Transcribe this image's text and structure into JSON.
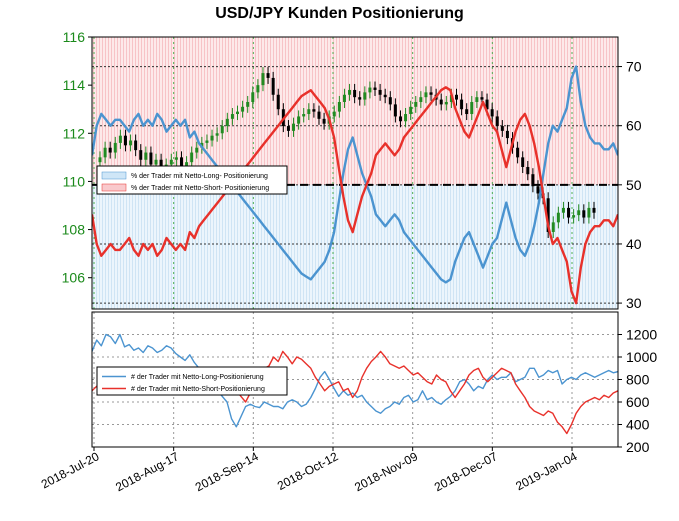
{
  "title": "USD/JPY Kunden Positionierung",
  "colors": {
    "long": "#4b94d0",
    "short": "#e8312b",
    "long_fill": "#cfe6f7",
    "short_fill": "#f9c9cc",
    "tick_green": "#1b8a1b",
    "candle_up": "#228b22",
    "candle_down": "#000000"
  },
  "chart_data": [
    {
      "type": "line",
      "panel": "top",
      "title": "USD/JPY Kunden Positionierung",
      "x_ticks": [
        "2018-Jul-20",
        "2018-Aug-17",
        "2018-Sep-14",
        "2018-Oct-12",
        "2018-Nov-09",
        "2018-Dec-07",
        "2019-Jan-04"
      ],
      "y_left": {
        "ylim": [
          104.7,
          116
        ],
        "ticks": [
          "106",
          "108",
          "110",
          "112",
          "114",
          "116"
        ]
      },
      "y_right": {
        "ylim": [
          29,
          75
        ],
        "ticks": [
          "30",
          "40",
          "50",
          "60",
          "70"
        ]
      },
      "threshold": 50,
      "legend": {
        "position": "upper-left",
        "entries": [
          "% der Trader mit Netto-Long- Positionierung",
          "% der Trader mit Netto-Short- Positionierung"
        ]
      },
      "series": [
        {
          "name": "% der Trader mit Netto-Long- Positionierung",
          "values": [
            55,
            60,
            62,
            61,
            60,
            61,
            61,
            60,
            59,
            61,
            62,
            60,
            61,
            60,
            62,
            61,
            59,
            60,
            61,
            60,
            61,
            58,
            59,
            57,
            56,
            55,
            54,
            53,
            52,
            51,
            50,
            49,
            48,
            47,
            46,
            45,
            44,
            43,
            42,
            41,
            40,
            39,
            38,
            37,
            36,
            35,
            34.5,
            34,
            35,
            36,
            37,
            39,
            42,
            47,
            52,
            56,
            58,
            55,
            52,
            50,
            48,
            45,
            44,
            43,
            44,
            45,
            44,
            42,
            41,
            40,
            39,
            38,
            37,
            36,
            35,
            34,
            33.5,
            34,
            37,
            39,
            41,
            42,
            40,
            38,
            36,
            38,
            40,
            41,
            44,
            47,
            44,
            41,
            39,
            38,
            40,
            43,
            47,
            52,
            57,
            60,
            59,
            61,
            63,
            68,
            70,
            64,
            60,
            58,
            57,
            57,
            56,
            56,
            57,
            55
          ]
        },
        {
          "name": "% der Trader mit Netto-Short- Positionierung",
          "values": [
            45,
            40,
            38,
            39,
            40,
            39,
            39,
            40,
            41,
            39,
            38,
            40,
            39,
            40,
            38,
            39,
            41,
            40,
            39,
            40,
            39,
            42,
            41,
            43,
            44,
            45,
            46,
            47,
            48,
            49,
            50,
            51,
            52,
            53,
            54,
            55,
            56,
            57,
            58,
            59,
            60,
            61,
            62,
            63,
            64,
            65,
            65.5,
            66,
            65,
            64,
            63,
            61,
            58,
            53,
            48,
            44,
            42,
            45,
            48,
            50,
            52,
            55,
            56,
            57,
            56,
            55,
            56,
            58,
            59,
            60,
            61,
            62,
            63,
            64,
            65,
            66,
            66.5,
            66,
            63,
            61,
            59,
            58,
            60,
            62,
            64,
            62,
            60,
            59,
            56,
            53,
            56,
            59,
            61,
            62,
            60,
            57,
            53,
            48,
            43,
            40,
            41,
            39,
            37,
            32,
            30,
            36,
            40,
            42,
            43,
            43,
            44,
            44,
            43,
            45
          ]
        }
      ],
      "candles_approx_close": [
        111.0,
        111.4,
        111.2,
        111.6,
        111.9,
        111.5,
        111.7,
        111.3,
        110.9,
        111.2,
        110.7,
        110.9,
        110.4,
        110.7,
        110.9,
        111.0,
        110.6,
        110.8,
        111.2,
        111.4,
        111.6,
        111.7,
        111.9,
        112.0,
        112.3,
        112.6,
        112.8,
        112.9,
        113.1,
        113.3,
        113.7,
        114.0,
        114.5,
        114.3,
        113.6,
        113.0,
        112.3,
        112.1,
        112.4,
        112.7,
        112.8,
        113.0,
        112.9,
        112.6,
        112.4,
        112.7,
        112.9,
        113.3,
        113.6,
        113.8,
        113.5,
        113.4,
        113.7,
        113.9,
        113.8,
        113.6,
        113.5,
        113.2,
        112.7,
        112.5,
        112.8,
        113.1,
        113.3,
        113.5,
        113.7,
        113.6,
        113.4,
        113.2,
        113.3,
        113.6,
        113.4,
        113.0,
        112.8,
        113.3,
        113.5,
        113.4,
        113.0,
        112.7,
        112.3,
        112.1,
        111.8,
        111.4,
        111.0,
        110.6,
        110.3,
        109.8,
        109.5,
        109.3,
        107.9,
        108.3,
        108.7,
        108.9,
        108.5,
        108.6,
        108.8,
        108.5,
        108.9,
        108.7
      ]
    },
    {
      "type": "line",
      "panel": "bottom",
      "y_right": {
        "ylim": [
          200,
          1400
        ],
        "ticks": [
          "200",
          "400",
          "600",
          "800",
          "1000",
          "1200"
        ]
      },
      "legend": {
        "position": "center-left",
        "entries": [
          "# der Trader mit Netto-Long-Positionierung",
          "# der Trader mit Netto-Short-Positionierung"
        ]
      },
      "series": [
        {
          "name": "# der Trader mit Netto-Long-Positionierung",
          "values": [
            1050,
            1150,
            1100,
            1200,
            1180,
            1120,
            1200,
            1090,
            1110,
            1060,
            1080,
            1040,
            1100,
            1080,
            1040,
            1060,
            1100,
            1080,
            1030,
            1000,
            970,
            1020,
            950,
            900,
            870,
            820,
            760,
            700,
            650,
            600,
            450,
            380,
            470,
            560,
            580,
            560,
            550,
            600,
            580,
            560,
            560,
            540,
            600,
            620,
            600,
            560,
            580,
            640,
            720,
            820,
            870,
            800,
            720,
            650,
            700,
            660,
            680,
            640,
            660,
            600,
            560,
            520,
            500,
            540,
            560,
            600,
            580,
            640,
            660,
            600,
            620,
            700,
            620,
            640,
            600,
            580,
            620,
            650,
            700,
            780,
            800,
            760,
            700,
            740,
            720,
            800,
            840,
            800,
            820,
            820,
            860,
            780,
            800,
            820,
            900,
            900,
            820,
            840,
            880,
            860,
            880,
            760,
            800,
            820,
            800,
            840,
            860,
            840,
            820,
            840,
            860,
            880,
            860,
            870
          ]
        },
        {
          "name": "# der Trader mit Netto-Short-Positionierung",
          "values": [
            700,
            740,
            760,
            800,
            700,
            680,
            720,
            740,
            700,
            740,
            720,
            780,
            740,
            700,
            720,
            780,
            760,
            720,
            700,
            760,
            720,
            740,
            720,
            700,
            700,
            680,
            700,
            720,
            740,
            780,
            800,
            700,
            650,
            600,
            680,
            720,
            800,
            900,
            920,
            1000,
            960,
            1050,
            1000,
            940,
            1000,
            980,
            940,
            900,
            820,
            760,
            700,
            740,
            760,
            780,
            700,
            720,
            640,
            700,
            820,
            900,
            960,
            1000,
            1050,
            1000,
            940,
            920,
            900,
            920,
            880,
            840,
            860,
            820,
            780,
            760,
            840,
            800,
            780,
            700,
            640,
            700,
            760,
            840,
            880,
            900,
            820,
            780,
            820,
            860,
            900,
            880,
            860,
            760,
            700,
            640,
            560,
            520,
            500,
            480,
            520,
            500,
            420,
            380,
            320,
            400,
            500,
            560,
            600,
            620,
            640,
            620,
            660,
            640,
            680,
            700
          ]
        }
      ]
    }
  ]
}
